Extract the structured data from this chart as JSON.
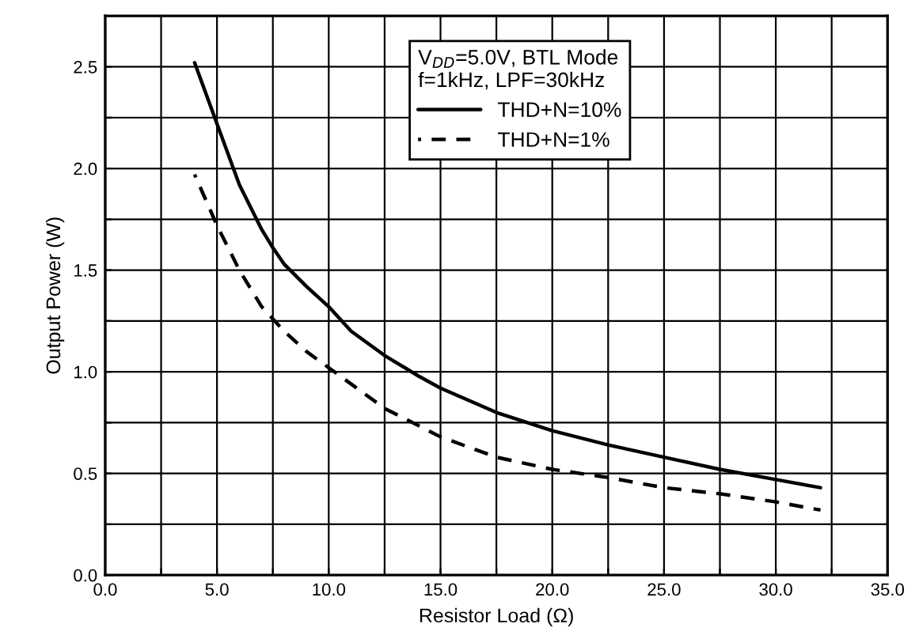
{
  "chart_data": {
    "type": "line",
    "xlabel": "Resistor Load (Ω)",
    "ylabel": "Output Power (W)",
    "legend_title": "V$_{DD}$=5.0V, BTL Mode\nf=1kHz, LPF=30kHz",
    "legend": "top",
    "grid": true,
    "xlim": [
      0,
      35
    ],
    "ylim": [
      0,
      2.75
    ],
    "xticks": [
      {
        "value": 0,
        "label": "0.0"
      },
      {
        "value": 2.5,
        "label": null
      },
      {
        "value": 5,
        "label": "5.0"
      },
      {
        "value": 7.5,
        "label": null
      },
      {
        "value": 10,
        "label": "10.0"
      },
      {
        "value": 12.5,
        "label": null
      },
      {
        "value": 15,
        "label": "15.0"
      },
      {
        "value": 17.5,
        "label": null
      },
      {
        "value": 20,
        "label": "20.0"
      },
      {
        "value": 22.5,
        "label": null
      },
      {
        "value": 25,
        "label": "25.0"
      },
      {
        "value": 27.5,
        "label": null
      },
      {
        "value": 30,
        "label": "30.0"
      },
      {
        "value": 32.5,
        "label": null
      },
      {
        "value": 35,
        "label": "35.0"
      }
    ],
    "yticks": [
      {
        "value": 0,
        "label": "0.0"
      },
      {
        "value": 0.25,
        "label": null
      },
      {
        "value": 0.5,
        "label": "0.5"
      },
      {
        "value": 0.75,
        "label": null
      },
      {
        "value": 1.0,
        "label": "1.0"
      },
      {
        "value": 1.25,
        "label": null
      },
      {
        "value": 1.5,
        "label": "1.5"
      },
      {
        "value": 1.75,
        "label": null
      },
      {
        "value": 2.0,
        "label": "2.0"
      },
      {
        "value": 2.25,
        "label": null
      },
      {
        "value": 2.5,
        "label": "2.5"
      }
    ],
    "series": [
      {
        "name": "THD+N=10%",
        "color": "#000000",
        "line_style": "solid",
        "x": [
          4,
          5,
          6,
          7,
          7.5,
          8,
          9,
          10,
          11,
          12.5,
          14,
          15,
          17.5,
          20,
          22.5,
          25,
          27.5,
          30,
          32
        ],
        "values": [
          2.52,
          2.22,
          1.92,
          1.7,
          1.61,
          1.53,
          1.42,
          1.32,
          1.2,
          1.08,
          0.98,
          0.92,
          0.8,
          0.71,
          0.64,
          0.58,
          0.52,
          0.47,
          0.43
        ]
      },
      {
        "name": "THD+N=1%",
        "color": "#000000",
        "line_style": "dashed",
        "x": [
          4,
          5,
          6,
          7,
          7.5,
          8,
          9,
          10,
          12.5,
          15,
          17.5,
          20,
          22.5,
          25,
          27.5,
          30,
          32
        ],
        "values": [
          1.97,
          1.72,
          1.5,
          1.32,
          1.26,
          1.2,
          1.1,
          1.02,
          0.82,
          0.68,
          0.58,
          0.52,
          0.48,
          0.43,
          0.4,
          0.36,
          0.32
        ]
      }
    ]
  }
}
